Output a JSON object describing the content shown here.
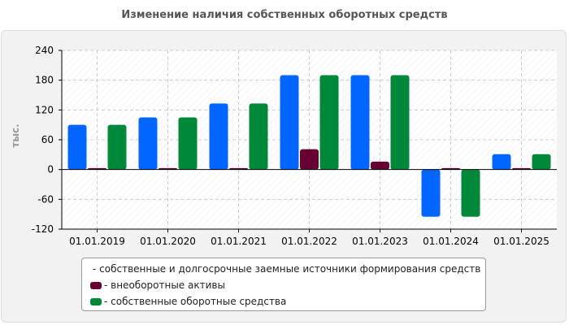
{
  "colors": {
    "series_1": "#0066ff",
    "series_2": "#660033",
    "series_3": "#00883a",
    "axis": "#000000",
    "grid": "#cccccc"
  },
  "chart_data": {
    "type": "bar",
    "title": "Изменение наличия собственных оборотных средств",
    "xlabel": "",
    "ylabel": "тыс.",
    "ylim": [
      -120,
      240
    ],
    "yticks": [
      -120,
      -60,
      0,
      60,
      120,
      180,
      240
    ],
    "grid": true,
    "legend": "bottom",
    "categories": [
      "01.01.2019",
      "01.01.2020",
      "01.01.2021",
      "01.01.2022",
      "01.01.2023",
      "01.01.2024",
      "01.01.2025"
    ],
    "series": [
      {
        "name": "собственные и долгосрочные заемные источники формирования средств",
        "color": "#0066ff",
        "values": [
          90,
          105,
          133,
          190,
          190,
          -95,
          31
        ]
      },
      {
        "name": "внеоборотные активы",
        "color": "#660033",
        "values": [
          3,
          3,
          3,
          41,
          16,
          3,
          3
        ]
      },
      {
        "name": "собственные оборотные средства",
        "color": "#00883a",
        "values": [
          90,
          105,
          133,
          190,
          190,
          -95,
          31
        ]
      }
    ]
  }
}
